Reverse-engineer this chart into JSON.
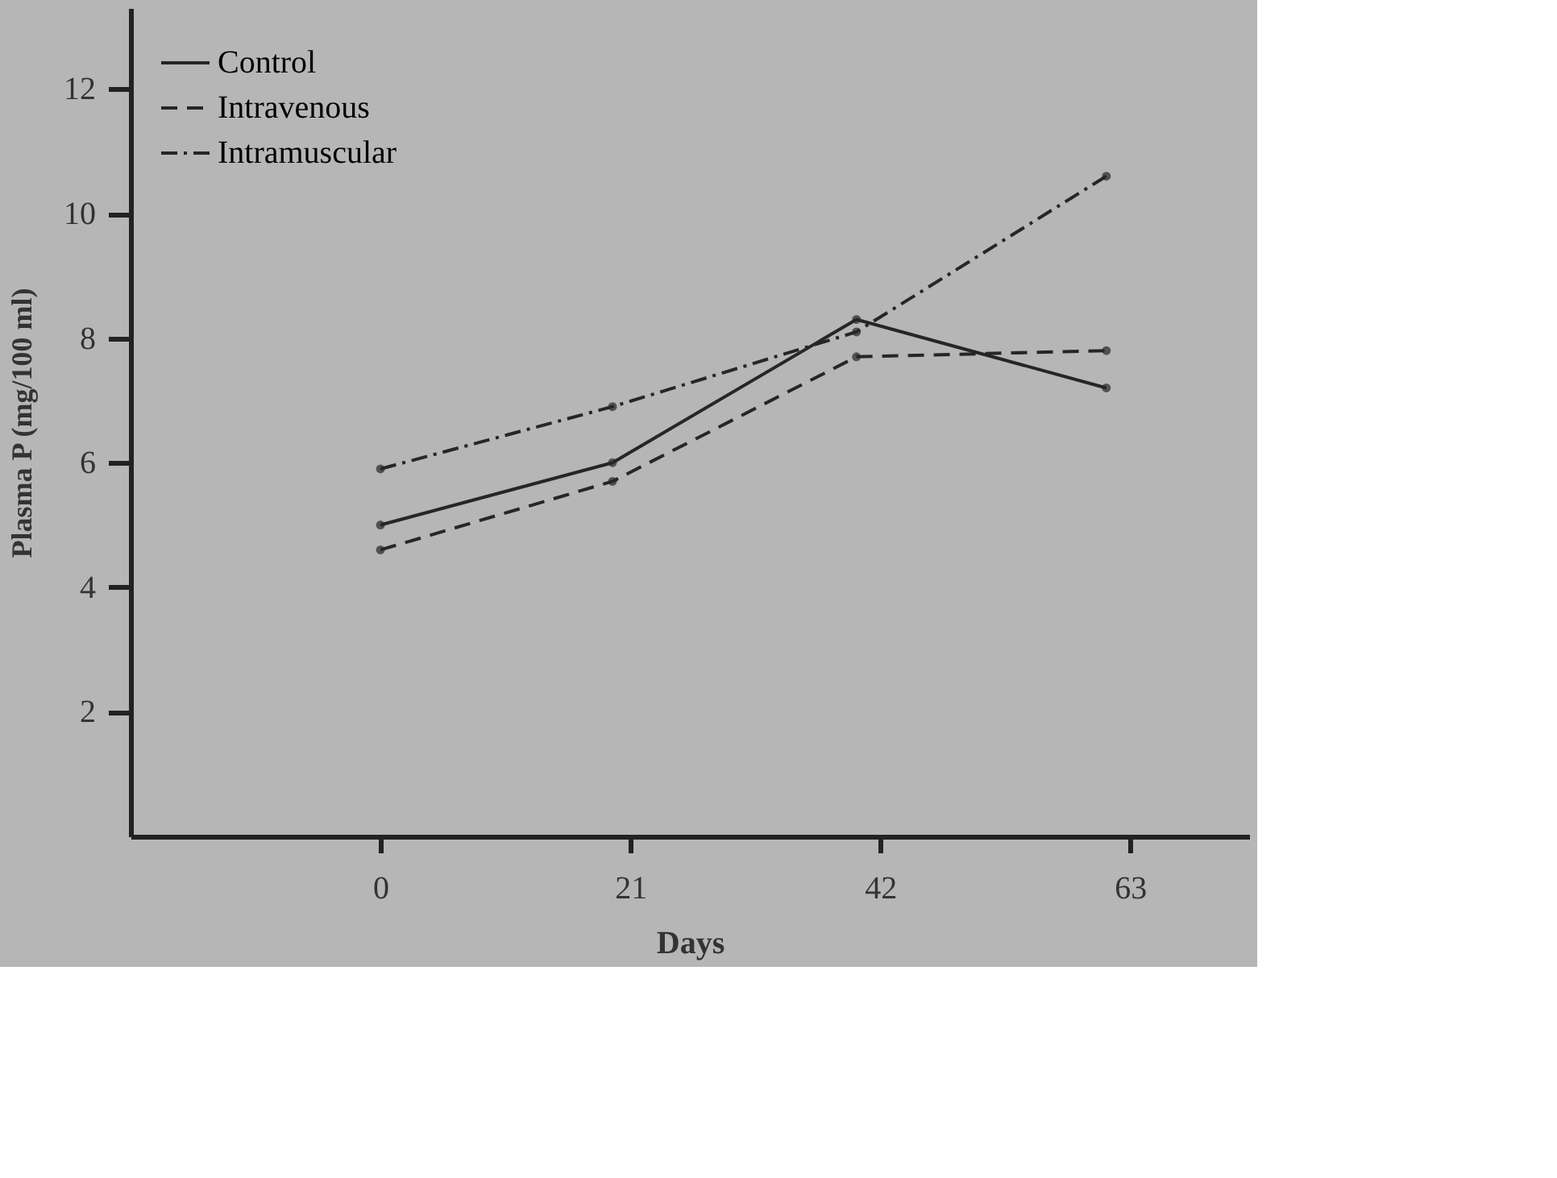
{
  "chart_data": {
    "type": "line",
    "xlabel": "Days",
    "ylabel": "Plasma  P  (mg/100 ml)",
    "x": [
      0,
      19.5,
      40,
      61
    ],
    "series": [
      {
        "name": "Control",
        "color": "#262626",
        "values": [
          5.0,
          6.0,
          8.3,
          7.2
        ],
        "line_style": "solid"
      },
      {
        "name": "Intravenous",
        "color": "#262626",
        "values": [
          4.6,
          5.7,
          7.7,
          7.8
        ],
        "line_style": "dashed"
      },
      {
        "name": "Intramuscular",
        "color": "#262626",
        "values": [
          5.9,
          6.9,
          8.1,
          10.6
        ],
        "line_style": "dotted"
      }
    ],
    "xlim": [
      -21,
      73
    ],
    "xticks": [
      0,
      21,
      42,
      63
    ],
    "ylim": [
      0,
      13.3
    ],
    "yticks": [
      2,
      4,
      6,
      8,
      10,
      12
    ],
    "grid": false,
    "legend": "top left",
    "marker": "circle"
  }
}
